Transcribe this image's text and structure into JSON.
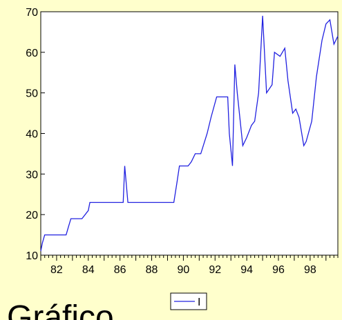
{
  "caption": "Gráfico",
  "colors": {
    "background": "#FFFFCC",
    "plot_area": "#FFFFFF",
    "axis": "#000000",
    "series": "#2020E0"
  },
  "chart_data": {
    "type": "line",
    "title": "",
    "xlabel": "",
    "ylabel": "",
    "xlim": [
      1981.0,
      1999.75
    ],
    "ylim": [
      10,
      70
    ],
    "x_tick_labels": [
      "82",
      "84",
      "86",
      "88",
      "90",
      "92",
      "94",
      "96",
      "98"
    ],
    "x_tick_values": [
      1982,
      1984,
      1986,
      1988,
      1990,
      1992,
      1994,
      1996,
      1998
    ],
    "y_tick_labels": [
      "10",
      "20",
      "30",
      "40",
      "50",
      "60",
      "70"
    ],
    "y_tick_values": [
      10,
      20,
      30,
      40,
      50,
      60,
      70
    ],
    "grid": false,
    "legend": "bottom-center",
    "series": [
      {
        "name": "I",
        "x": [
          1981.0,
          1981.1,
          1981.25,
          1982.0,
          1982.6,
          1982.75,
          1982.9,
          1983.5,
          1983.6,
          1984.0,
          1984.1,
          1986.0,
          1986.2,
          1986.3,
          1986.5,
          1989.4,
          1989.6,
          1989.75,
          1990.3,
          1990.5,
          1990.75,
          1991.1,
          1991.5,
          1991.75,
          1992.1,
          1992.6,
          1992.8,
          1992.9,
          1993.1,
          1993.25,
          1993.4,
          1993.75,
          1994.0,
          1994.3,
          1994.5,
          1994.75,
          1995.0,
          1995.25,
          1995.6,
          1995.75,
          1996.1,
          1996.4,
          1996.6,
          1996.9,
          1997.1,
          1997.3,
          1997.6,
          1997.75,
          1998.1,
          1998.4,
          1998.75,
          1999.0,
          1999.25,
          1999.5,
          1999.75
        ],
        "values": [
          11,
          13,
          15,
          15,
          15,
          17,
          19,
          19,
          19,
          21,
          23,
          23,
          23,
          32,
          23,
          23,
          28,
          32,
          32,
          33,
          35,
          35,
          40,
          44,
          49,
          49,
          49,
          40,
          32,
          57,
          50,
          37,
          39,
          42,
          43,
          50,
          69,
          50,
          52,
          60,
          59,
          61,
          53,
          45,
          46,
          44,
          37,
          38,
          43,
          54,
          63,
          67,
          68,
          62,
          64
        ]
      }
    ]
  }
}
